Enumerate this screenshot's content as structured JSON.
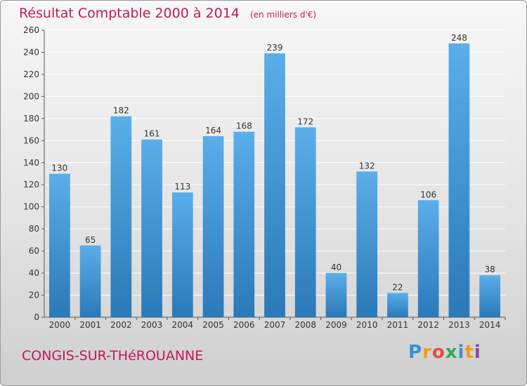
{
  "colors": {
    "accent": "#c2185b",
    "bar_top": "#5aaeea",
    "bar_bottom": "#2a79b8",
    "grid": "#ffffff"
  },
  "chart_data": {
    "type": "bar",
    "title": "Résultat Comptable 2000 à 2014",
    "subtitle": "(en milliers d'€)",
    "xlabel": "",
    "ylabel": "",
    "categories": [
      "2000",
      "2001",
      "2002",
      "2003",
      "2004",
      "2005",
      "2006",
      "2007",
      "2008",
      "2009",
      "2010",
      "2011",
      "2012",
      "2013",
      "2014"
    ],
    "values": [
      130,
      65,
      182,
      161,
      113,
      164,
      168,
      239,
      172,
      40,
      132,
      22,
      106,
      248,
      38
    ],
    "ylim": [
      0,
      260
    ],
    "yticks": [
      0,
      20,
      40,
      60,
      80,
      100,
      120,
      140,
      160,
      180,
      200,
      220,
      240,
      260
    ],
    "grid": true,
    "legend": "none"
  },
  "footer": {
    "town": "CONGIS-SUR-THéROUANNE",
    "brand_letters": [
      "P",
      "r",
      "o",
      "x",
      "i",
      "t",
      "i"
    ],
    "brand_colors": [
      "#3a8fd6",
      "#f39c12",
      "#e74c3c",
      "#27ae60",
      "#3a8fd6",
      "#f39c12",
      "#8e44ad"
    ]
  }
}
